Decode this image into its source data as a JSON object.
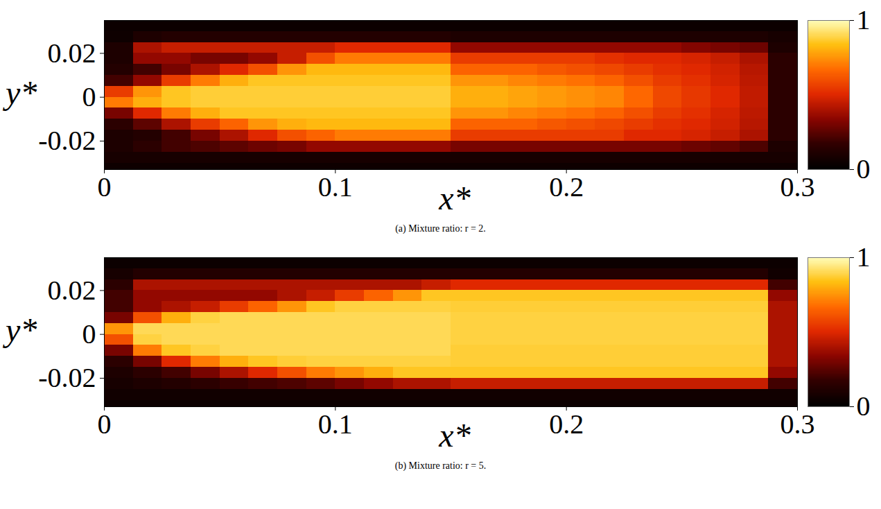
{
  "chart_data": [
    {
      "type": "heatmap",
      "caption": "(a) Mixture ratio: r = 2.",
      "xlabel": "x*",
      "ylabel": "y*",
      "xlim": [
        0,
        0.3
      ],
      "ylim": [
        -0.033,
        0.035
      ],
      "xticks": [
        0,
        0.1,
        0.2,
        0.3
      ],
      "yticks": [
        -0.02,
        0,
        0.02
      ],
      "x_edges": [
        0,
        0.0125,
        0.025,
        0.0375,
        0.05,
        0.0625,
        0.075,
        0.0875,
        0.1,
        0.1125,
        0.125,
        0.1375,
        0.15,
        0.1625,
        0.175,
        0.1875,
        0.2,
        0.2125,
        0.225,
        0.2375,
        0.25,
        0.2625,
        0.275,
        0.2875,
        0.3
      ],
      "y_edges": [
        -0.033,
        -0.03,
        -0.025,
        -0.02,
        -0.015,
        -0.01,
        -0.005,
        0,
        0.005,
        0.01,
        0.015,
        0.02,
        0.025,
        0.03,
        0.035
      ],
      "values": [
        [
          0.05,
          0.05,
          0.05,
          0.05,
          0.05,
          0.05,
          0.05,
          0.05,
          0.05,
          0.05,
          0.05,
          0.05,
          0.05,
          0.05,
          0.05,
          0.05,
          0.05,
          0.05,
          0.05,
          0.05,
          0.05,
          0.05,
          0.05,
          0.05
        ],
        [
          0.08,
          0.08,
          0.08,
          0.08,
          0.08,
          0.08,
          0.08,
          0.08,
          0.08,
          0.08,
          0.08,
          0.08,
          0.08,
          0.08,
          0.08,
          0.08,
          0.08,
          0.08,
          0.08,
          0.08,
          0.08,
          0.08,
          0.08,
          0.08
        ],
        [
          0.1,
          0.15,
          0.2,
          0.22,
          0.25,
          0.28,
          0.3,
          0.35,
          0.35,
          0.35,
          0.35,
          0.35,
          0.3,
          0.3,
          0.3,
          0.3,
          0.3,
          0.3,
          0.3,
          0.3,
          0.28,
          0.26,
          0.22,
          0.1
        ],
        [
          0.1,
          0.12,
          0.2,
          0.3,
          0.4,
          0.5,
          0.6,
          0.65,
          0.7,
          0.7,
          0.7,
          0.7,
          0.55,
          0.55,
          0.55,
          0.55,
          0.55,
          0.55,
          0.5,
          0.5,
          0.48,
          0.45,
          0.4,
          0.15
        ],
        [
          0.15,
          0.25,
          0.4,
          0.55,
          0.65,
          0.75,
          0.8,
          0.82,
          0.82,
          0.82,
          0.82,
          0.82,
          0.65,
          0.65,
          0.65,
          0.62,
          0.6,
          0.58,
          0.55,
          0.52,
          0.5,
          0.47,
          0.42,
          0.15
        ],
        [
          0.3,
          0.5,
          0.7,
          0.8,
          0.85,
          0.85,
          0.85,
          0.85,
          0.85,
          0.85,
          0.85,
          0.85,
          0.75,
          0.75,
          0.72,
          0.7,
          0.68,
          0.65,
          0.6,
          0.55,
          0.52,
          0.48,
          0.43,
          0.15
        ],
        [
          0.7,
          0.8,
          0.85,
          0.87,
          0.87,
          0.87,
          0.87,
          0.87,
          0.87,
          0.87,
          0.87,
          0.87,
          0.8,
          0.8,
          0.78,
          0.76,
          0.74,
          0.72,
          0.66,
          0.58,
          0.54,
          0.5,
          0.44,
          0.15
        ],
        [
          0.55,
          0.75,
          0.85,
          0.87,
          0.87,
          0.87,
          0.87,
          0.87,
          0.87,
          0.87,
          0.87,
          0.87,
          0.8,
          0.8,
          0.78,
          0.76,
          0.74,
          0.72,
          0.66,
          0.58,
          0.54,
          0.5,
          0.44,
          0.15
        ],
        [
          0.2,
          0.35,
          0.55,
          0.7,
          0.8,
          0.85,
          0.85,
          0.85,
          0.85,
          0.85,
          0.85,
          0.85,
          0.75,
          0.75,
          0.72,
          0.7,
          0.68,
          0.65,
          0.6,
          0.55,
          0.52,
          0.48,
          0.43,
          0.15
        ],
        [
          0.12,
          0.2,
          0.3,
          0.4,
          0.5,
          0.6,
          0.75,
          0.82,
          0.82,
          0.82,
          0.82,
          0.82,
          0.65,
          0.65,
          0.65,
          0.62,
          0.6,
          0.58,
          0.55,
          0.52,
          0.5,
          0.47,
          0.42,
          0.15
        ],
        [
          0.1,
          0.35,
          0.35,
          0.3,
          0.3,
          0.35,
          0.45,
          0.6,
          0.7,
          0.7,
          0.7,
          0.7,
          0.55,
          0.55,
          0.55,
          0.55,
          0.55,
          0.52,
          0.5,
          0.5,
          0.48,
          0.45,
          0.4,
          0.15
        ],
        [
          0.1,
          0.4,
          0.45,
          0.45,
          0.45,
          0.45,
          0.45,
          0.45,
          0.5,
          0.5,
          0.5,
          0.5,
          0.35,
          0.35,
          0.35,
          0.35,
          0.35,
          0.35,
          0.35,
          0.35,
          0.32,
          0.3,
          0.28,
          0.1
        ],
        [
          0.05,
          0.1,
          0.12,
          0.12,
          0.12,
          0.12,
          0.12,
          0.12,
          0.12,
          0.12,
          0.12,
          0.12,
          0.1,
          0.1,
          0.1,
          0.1,
          0.1,
          0.1,
          0.1,
          0.1,
          0.1,
          0.1,
          0.1,
          0.08
        ],
        [
          0.04,
          0.04,
          0.04,
          0.04,
          0.04,
          0.04,
          0.04,
          0.04,
          0.04,
          0.04,
          0.04,
          0.04,
          0.04,
          0.04,
          0.04,
          0.04,
          0.04,
          0.04,
          0.04,
          0.04,
          0.04,
          0.04,
          0.04,
          0.04
        ]
      ],
      "colorbar": {
        "lim": [
          0,
          1
        ],
        "ticks": [
          0,
          1
        ]
      }
    },
    {
      "type": "heatmap",
      "caption": "(b) Mixture ratio: r = 5.",
      "xlabel": "x*",
      "ylabel": "y*",
      "xlim": [
        0,
        0.3
      ],
      "ylim": [
        -0.033,
        0.035
      ],
      "xticks": [
        0,
        0.1,
        0.2,
        0.3
      ],
      "yticks": [
        -0.02,
        0,
        0.02
      ],
      "x_edges": [
        0,
        0.0125,
        0.025,
        0.0375,
        0.05,
        0.0625,
        0.075,
        0.0875,
        0.1,
        0.1125,
        0.125,
        0.1375,
        0.15,
        0.1625,
        0.175,
        0.1875,
        0.2,
        0.2125,
        0.225,
        0.2375,
        0.25,
        0.2625,
        0.275,
        0.2875,
        0.3
      ],
      "y_edges": [
        -0.033,
        -0.03,
        -0.025,
        -0.02,
        -0.015,
        -0.01,
        -0.005,
        0,
        0.005,
        0.01,
        0.015,
        0.02,
        0.025,
        0.03,
        0.035
      ],
      "values": [
        [
          0.04,
          0.04,
          0.04,
          0.04,
          0.04,
          0.04,
          0.04,
          0.04,
          0.04,
          0.04,
          0.04,
          0.04,
          0.04,
          0.04,
          0.04,
          0.04,
          0.04,
          0.04,
          0.04,
          0.04,
          0.04,
          0.04,
          0.04,
          0.04
        ],
        [
          0.06,
          0.06,
          0.06,
          0.06,
          0.06,
          0.06,
          0.06,
          0.06,
          0.06,
          0.06,
          0.06,
          0.06,
          0.06,
          0.06,
          0.06,
          0.06,
          0.06,
          0.06,
          0.06,
          0.06,
          0.06,
          0.06,
          0.06,
          0.06
        ],
        [
          0.08,
          0.1,
          0.12,
          0.15,
          0.18,
          0.2,
          0.22,
          0.25,
          0.3,
          0.35,
          0.4,
          0.4,
          0.45,
          0.45,
          0.45,
          0.45,
          0.45,
          0.45,
          0.45,
          0.45,
          0.45,
          0.45,
          0.45,
          0.2
        ],
        [
          0.1,
          0.15,
          0.2,
          0.3,
          0.4,
          0.5,
          0.6,
          0.7,
          0.75,
          0.8,
          0.85,
          0.85,
          0.85,
          0.85,
          0.85,
          0.85,
          0.85,
          0.85,
          0.85,
          0.85,
          0.85,
          0.85,
          0.85,
          0.35
        ],
        [
          0.15,
          0.3,
          0.5,
          0.7,
          0.8,
          0.85,
          0.87,
          0.88,
          0.88,
          0.88,
          0.88,
          0.88,
          0.87,
          0.87,
          0.87,
          0.87,
          0.87,
          0.87,
          0.87,
          0.87,
          0.87,
          0.87,
          0.87,
          0.4
        ],
        [
          0.3,
          0.7,
          0.85,
          0.88,
          0.9,
          0.9,
          0.9,
          0.9,
          0.9,
          0.9,
          0.9,
          0.9,
          0.87,
          0.87,
          0.87,
          0.87,
          0.87,
          0.87,
          0.87,
          0.87,
          0.87,
          0.87,
          0.87,
          0.4
        ],
        [
          0.6,
          0.88,
          0.9,
          0.9,
          0.9,
          0.9,
          0.9,
          0.9,
          0.9,
          0.9,
          0.9,
          0.9,
          0.88,
          0.88,
          0.88,
          0.88,
          0.88,
          0.88,
          0.88,
          0.88,
          0.88,
          0.88,
          0.88,
          0.4
        ],
        [
          0.75,
          0.9,
          0.9,
          0.9,
          0.9,
          0.9,
          0.9,
          0.9,
          0.9,
          0.9,
          0.9,
          0.9,
          0.88,
          0.88,
          0.88,
          0.88,
          0.88,
          0.88,
          0.88,
          0.88,
          0.88,
          0.88,
          0.88,
          0.4
        ],
        [
          0.3,
          0.6,
          0.8,
          0.88,
          0.9,
          0.9,
          0.9,
          0.9,
          0.9,
          0.9,
          0.9,
          0.9,
          0.88,
          0.88,
          0.88,
          0.88,
          0.88,
          0.88,
          0.88,
          0.88,
          0.88,
          0.88,
          0.88,
          0.4
        ],
        [
          0.2,
          0.35,
          0.4,
          0.45,
          0.55,
          0.65,
          0.75,
          0.85,
          0.88,
          0.88,
          0.88,
          0.88,
          0.87,
          0.87,
          0.87,
          0.87,
          0.87,
          0.87,
          0.87,
          0.87,
          0.87,
          0.87,
          0.87,
          0.4
        ],
        [
          0.2,
          0.35,
          0.35,
          0.35,
          0.35,
          0.35,
          0.4,
          0.45,
          0.55,
          0.65,
          0.75,
          0.85,
          0.85,
          0.85,
          0.85,
          0.85,
          0.85,
          0.85,
          0.85,
          0.85,
          0.85,
          0.85,
          0.85,
          0.35
        ],
        [
          0.15,
          0.4,
          0.4,
          0.4,
          0.4,
          0.4,
          0.4,
          0.4,
          0.4,
          0.4,
          0.4,
          0.45,
          0.5,
          0.5,
          0.5,
          0.5,
          0.5,
          0.5,
          0.5,
          0.5,
          0.5,
          0.5,
          0.5,
          0.2
        ],
        [
          0.08,
          0.12,
          0.12,
          0.12,
          0.12,
          0.12,
          0.12,
          0.12,
          0.12,
          0.12,
          0.12,
          0.12,
          0.12,
          0.12,
          0.12,
          0.12,
          0.12,
          0.12,
          0.12,
          0.12,
          0.12,
          0.12,
          0.12,
          0.06
        ],
        [
          0.04,
          0.04,
          0.04,
          0.04,
          0.04,
          0.04,
          0.04,
          0.04,
          0.04,
          0.04,
          0.04,
          0.04,
          0.04,
          0.04,
          0.04,
          0.04,
          0.04,
          0.04,
          0.04,
          0.04,
          0.04,
          0.04,
          0.04,
          0.04
        ]
      ],
      "colorbar": {
        "lim": [
          0,
          1
        ],
        "ticks": [
          0,
          1
        ]
      }
    }
  ]
}
